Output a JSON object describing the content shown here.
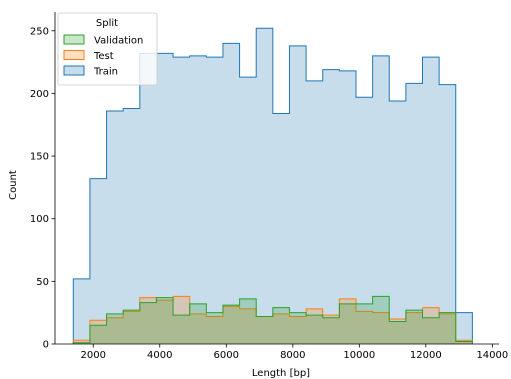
{
  "chart_data": {
    "type": "histogram-step",
    "xlabel": "Length [bp]",
    "ylabel": "Count",
    "xlim": [
      850,
      14200
    ],
    "ylim": [
      0,
      265
    ],
    "xticks": [
      2000,
      4000,
      6000,
      8000,
      10000,
      12000,
      14000
    ],
    "yticks": [
      0,
      50,
      100,
      150,
      200,
      250
    ],
    "legend": {
      "title": "Split",
      "placement": "top-left",
      "entries": [
        "Validation",
        "Test",
        "Train"
      ]
    },
    "bin_edges": [
      1400,
      1900,
      2400,
      2900,
      3400,
      3900,
      4400,
      4900,
      5400,
      5900,
      6400,
      6900,
      7400,
      7900,
      8400,
      8900,
      9400,
      9900,
      10400,
      10900,
      11400,
      11900,
      12400,
      12900,
      13400
    ],
    "series": [
      {
        "name": "Train",
        "color": "#1f77b4",
        "values": [
          52,
          132,
          186,
          188,
          232,
          232,
          229,
          230,
          229,
          240,
          213,
          252,
          184,
          238,
          210,
          219,
          218,
          197,
          230,
          194,
          208,
          229,
          207,
          25
        ]
      },
      {
        "name": "Test",
        "color": "#ff7f0e",
        "values": [
          3,
          19,
          21,
          26,
          37,
          35,
          38,
          24,
          22,
          30,
          28,
          22,
          24,
          22,
          28,
          23,
          36,
          26,
          25,
          20,
          25,
          29,
          24,
          3
        ]
      },
      {
        "name": "Validation",
        "color": "#2ca02c",
        "values": [
          1,
          15,
          24,
          27,
          33,
          37,
          23,
          32,
          25,
          31,
          36,
          22,
          29,
          25,
          23,
          21,
          32,
          32,
          38,
          18,
          27,
          21,
          25,
          2
        ]
      }
    ]
  }
}
